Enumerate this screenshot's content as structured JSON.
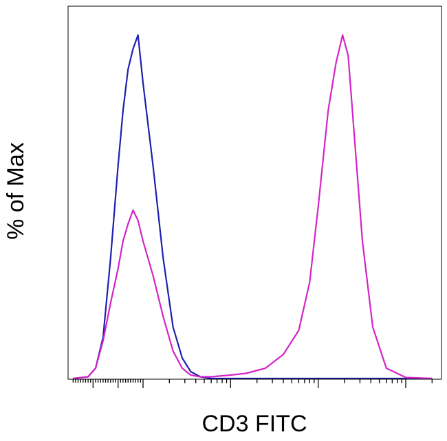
{
  "chart_data": {
    "type": "line",
    "xlabel": "CD3 FITC",
    "ylabel": "% of Max",
    "xscale": "log",
    "x_ticks": [
      -1000,
      0,
      1000,
      10000,
      100000,
      1000000
    ],
    "ylim": [
      0,
      100
    ],
    "grid": false,
    "legend": "none",
    "series": [
      {
        "color": "#1f1fb0",
        "x": [
          -1800,
          -1200,
          -900,
          -600,
          -300,
          0,
          200,
          400,
          600,
          800,
          1000,
          1300,
          1700,
          2200,
          2800,
          3500,
          4500,
          6000,
          10000,
          100000,
          1000000,
          2000000
        ],
        "y": [
          0,
          0.5,
          3,
          12,
          35,
          62,
          78,
          90,
          96,
          100,
          86,
          62,
          35,
          15,
          6,
          2,
          0.5,
          0,
          0,
          0,
          0,
          0
        ]
      },
      {
        "color": "#d423c8",
        "x": [
          -1800,
          -1200,
          -900,
          -600,
          -300,
          0,
          200,
          400,
          600,
          800,
          1000,
          1300,
          1700,
          2200,
          2800,
          3500,
          4500,
          6000,
          10000,
          15000,
          25000,
          40000,
          60000,
          80000,
          100000,
          130000,
          160000,
          190000,
          220000,
          260000,
          320000,
          420000,
          600000,
          1000000,
          2000000
        ],
        "y": [
          0,
          0.5,
          3,
          11,
          22,
          32,
          40,
          45,
          49,
          46,
          40,
          30,
          18,
          8,
          3,
          1,
          0.5,
          0.5,
          1,
          1.5,
          3,
          7,
          14,
          28,
          50,
          78,
          92,
          100,
          94,
          70,
          40,
          15,
          3,
          0.3,
          0
        ]
      }
    ]
  }
}
